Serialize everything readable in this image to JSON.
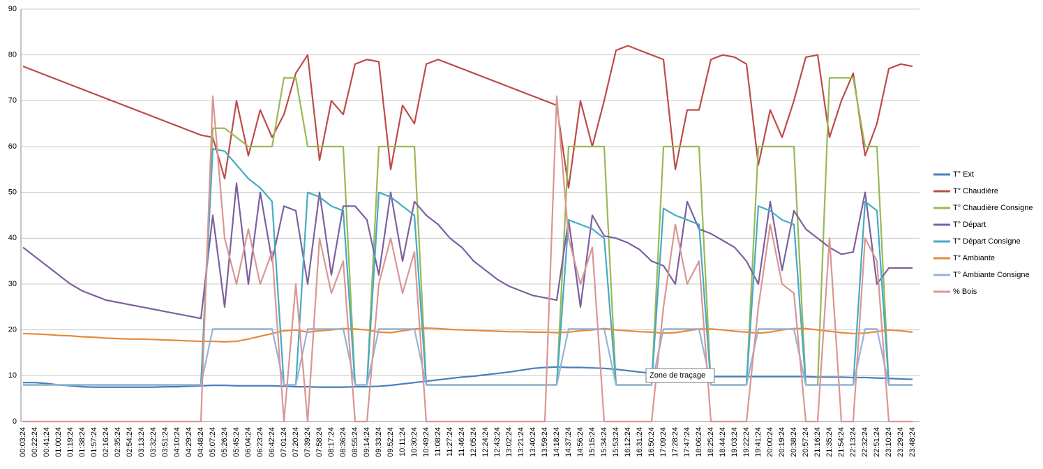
{
  "chart_data": {
    "type": "line",
    "tooltip": "Zone de traçage",
    "ylim": [
      0,
      90
    ],
    "yticks": [
      0,
      10,
      20,
      30,
      40,
      50,
      60,
      70,
      80,
      90
    ],
    "grid": true,
    "legend": "right",
    "categories": [
      "00:03:24",
      "00:22:24",
      "00:41:24",
      "01:00:24",
      "01:19:24",
      "01:38:24",
      "01:57:24",
      "02:16:24",
      "02:35:24",
      "02:54:24",
      "03:13:24",
      "03:32:24",
      "03:51:24",
      "04:10:24",
      "04:29:24",
      "04:48:24",
      "05:07:24",
      "05:26:24",
      "05:45:24",
      "06:04:24",
      "06:23:24",
      "06:42:24",
      "07:01:24",
      "07:20:24",
      "07:39:24",
      "07:58:24",
      "08:17:24",
      "08:36:24",
      "08:55:24",
      "09:14:24",
      "09:33:24",
      "09:52:24",
      "10:11:24",
      "10:30:24",
      "10:49:24",
      "11:08:24",
      "11:27:24",
      "11:46:24",
      "12:05:24",
      "12:24:24",
      "12:43:24",
      "13:02:24",
      "13:21:24",
      "13:40:24",
      "13:59:24",
      "14:18:24",
      "14:37:24",
      "14:56:24",
      "15:15:24",
      "15:34:24",
      "15:53:24",
      "16:12:24",
      "16:31:24",
      "16:50:24",
      "17:09:24",
      "17:28:24",
      "17:47:24",
      "18:06:24",
      "18:25:24",
      "18:44:24",
      "19:03:24",
      "19:22:24",
      "19:41:24",
      "20:00:24",
      "20:19:24",
      "20:38:24",
      "20:57:24",
      "21:16:24",
      "21:35:24",
      "21:54:24",
      "22:13:24",
      "22:32:24",
      "22:51:24",
      "23:10:24",
      "23:29:24",
      "23:48:24"
    ],
    "series": [
      {
        "name": "T° Ext",
        "color": "#4a7ebb",
        "values": [
          8.5,
          8.5,
          8.3,
          8,
          7.8,
          7.6,
          7.5,
          7.5,
          7.5,
          7.5,
          7.5,
          7.5,
          7.6,
          7.6,
          7.7,
          7.8,
          7.9,
          7.9,
          7.8,
          7.8,
          7.8,
          7.8,
          7.7,
          7.6,
          7.6,
          7.5,
          7.5,
          7.5,
          7.6,
          7.6,
          7.7,
          7.9,
          8.2,
          8.5,
          8.8,
          9.1,
          9.4,
          9.7,
          9.9,
          10.2,
          10.5,
          10.8,
          11.2,
          11.6,
          11.8,
          11.9,
          11.8,
          11.8,
          11.7,
          11.6,
          11.4,
          11.1,
          10.8,
          10.5,
          10.2,
          10,
          9.9,
          9.8,
          9.8,
          9.8,
          9.8,
          9.8,
          9.8,
          9.8,
          9.8,
          9.8,
          9.8,
          9.7,
          9.7,
          9.7,
          9.6,
          9.6,
          9.5,
          9.4,
          9.3,
          9.2
        ]
      },
      {
        "name": "T° Chaudière",
        "color": "#be4b48",
        "values": [
          77.5,
          76.5,
          75.5,
          74.5,
          73.5,
          72.5,
          71.5,
          70.5,
          69.5,
          68.5,
          67.5,
          66.5,
          65.5,
          64.5,
          63.5,
          62.5,
          62,
          53,
          70,
          58,
          68,
          62,
          67,
          76,
          80,
          57,
          70,
          67,
          78,
          79,
          78.5,
          55,
          69,
          65,
          78,
          79,
          78,
          77,
          76,
          75,
          74,
          73,
          72,
          71,
          70,
          69,
          51,
          70,
          60,
          70,
          81,
          82,
          81,
          80,
          79,
          55,
          68,
          68,
          79,
          80,
          79.5,
          78,
          56,
          68,
          62,
          70,
          79.5,
          80,
          62,
          70,
          76,
          58,
          65,
          77,
          78,
          77.5
        ]
      },
      {
        "name": "T° Chaudière Consigne",
        "color": "#98b954",
        "values": [
          8,
          8,
          8,
          8,
          8,
          8,
          8,
          8,
          8,
          8,
          8,
          8,
          8,
          8,
          8,
          8,
          64,
          64,
          62,
          60,
          60,
          60,
          75,
          75,
          60,
          60,
          60,
          60,
          8,
          8,
          60,
          60,
          60,
          60,
          8,
          8,
          8,
          8,
          8,
          8,
          8,
          8,
          8,
          8,
          8,
          8,
          60,
          60,
          60,
          60,
          8,
          8,
          8,
          8,
          60,
          60,
          60,
          60,
          8,
          8,
          8,
          8,
          60,
          60,
          60,
          60,
          8,
          8,
          75,
          75,
          75,
          60,
          60,
          8,
          8,
          8
        ]
      },
      {
        "name": "T° Départ",
        "color": "#7d60a0",
        "values": [
          38,
          36,
          34,
          32,
          30,
          28.5,
          27.5,
          26.5,
          26,
          25.5,
          25,
          24.5,
          24,
          23.5,
          23,
          22.5,
          45,
          25,
          52,
          30,
          50,
          35,
          47,
          46,
          30,
          50,
          32,
          47,
          47,
          44,
          32,
          50,
          35,
          48,
          45,
          43,
          40,
          38,
          35,
          33,
          31,
          29.5,
          28.5,
          27.5,
          27,
          26.5,
          44,
          25,
          45,
          40.5,
          40,
          39,
          37.5,
          35,
          34,
          30,
          48,
          42,
          41,
          39.5,
          38,
          35,
          30,
          48,
          33,
          46,
          42,
          40,
          38,
          36.5,
          37,
          50,
          30,
          33.5,
          33.5,
          33.5
        ]
      },
      {
        "name": "T° Départ Consigne",
        "color": "#46aac5",
        "values": [
          8,
          8,
          8,
          8,
          8,
          8,
          8,
          8,
          8,
          8,
          8,
          8,
          8,
          8,
          8,
          8,
          59.5,
          59,
          56,
          53,
          51,
          48,
          8,
          8,
          50,
          49,
          47,
          46,
          8,
          8,
          50,
          49,
          47,
          45,
          8,
          8,
          8,
          8,
          8,
          8,
          8,
          8,
          8,
          8,
          8,
          8,
          44,
          43,
          42,
          40,
          8,
          8,
          8,
          8,
          46.5,
          45,
          44,
          43,
          8,
          8,
          8,
          8,
          47,
          46,
          44,
          43,
          8,
          8,
          8,
          8,
          8,
          48,
          46,
          8,
          8,
          8
        ]
      },
      {
        "name": "T° Ambiante",
        "color": "#e48a3c",
        "values": [
          19.2,
          19.1,
          19,
          18.8,
          18.7,
          18.5,
          18.4,
          18.2,
          18.1,
          18,
          18,
          17.9,
          17.8,
          17.7,
          17.6,
          17.5,
          17.5,
          17.4,
          17.5,
          18,
          18.6,
          19.2,
          19.8,
          20,
          19.5,
          19.8,
          20,
          20.3,
          20.2,
          20,
          19.5,
          19.4,
          19.8,
          20.2,
          20.4,
          20.3,
          20.1,
          20,
          19.9,
          19.8,
          19.7,
          19.6,
          19.6,
          19.5,
          19.5,
          19.4,
          19.5,
          19.8,
          20,
          20.3,
          20,
          19.8,
          19.6,
          19.5,
          19.3,
          19.4,
          19.8,
          20.2,
          20.2,
          20,
          19.7,
          19.5,
          19.3,
          19.5,
          20,
          20.3,
          20.3,
          20,
          19.7,
          19.4,
          19.2,
          19.3,
          19.6,
          20,
          19.8,
          19.5
        ]
      },
      {
        "name": "T° Ambiante Consigne",
        "color": "#95b3d7",
        "values": [
          8,
          8,
          8,
          8,
          8,
          8,
          8,
          8,
          8,
          8,
          8,
          8,
          8,
          8,
          8,
          8,
          20.2,
          20.2,
          20.2,
          20.2,
          20.2,
          20.2,
          8,
          8,
          20.2,
          20.2,
          20.2,
          20.2,
          8,
          8,
          20.2,
          20.2,
          20.2,
          20.2,
          8,
          8,
          8,
          8,
          8,
          8,
          8,
          8,
          8,
          8,
          8,
          8,
          20.2,
          20.2,
          20.2,
          20.2,
          8,
          8,
          8,
          8,
          20.2,
          20.2,
          20.2,
          20.2,
          8,
          8,
          8,
          8,
          20.2,
          20.2,
          20.2,
          20.2,
          8,
          8,
          8,
          8,
          8,
          20.2,
          20.2,
          8,
          8,
          8
        ]
      },
      {
        "name": "% Bois",
        "color": "#d99694",
        "values": [
          0,
          0,
          0,
          0,
          0,
          0,
          0,
          0,
          0,
          0,
          0,
          0,
          0,
          0,
          0,
          0,
          71,
          40,
          30,
          42,
          30,
          37,
          0,
          30,
          0,
          40,
          28,
          35,
          0,
          0,
          30,
          40,
          28,
          37,
          0,
          0,
          0,
          0,
          0,
          0,
          0,
          0,
          0,
          0,
          0,
          71,
          40,
          30,
          38,
          0,
          0,
          0,
          0,
          0,
          25,
          43,
          30,
          35,
          0,
          0,
          0,
          0,
          25,
          43,
          30,
          28,
          0,
          0,
          40,
          0,
          0,
          40,
          35,
          0,
          0,
          0
        ]
      }
    ]
  }
}
